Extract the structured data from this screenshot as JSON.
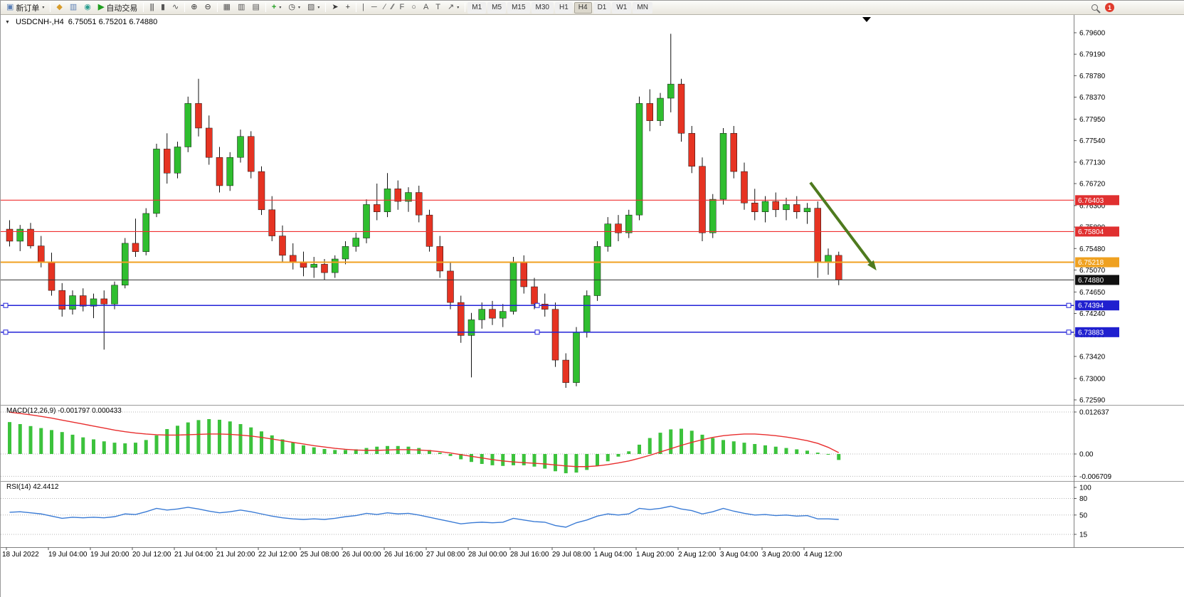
{
  "toolbar": {
    "new_order_label": "新订单",
    "autotrading_label": "自动交易",
    "timeframes": [
      "M1",
      "M5",
      "M15",
      "M30",
      "H1",
      "H4",
      "D1",
      "W1",
      "MN"
    ],
    "active_timeframe": "H4",
    "notification_count": "1"
  },
  "icons": {
    "oct": "▼",
    "caret": "▾",
    "new_order": "▣",
    "metaeditor": "◆",
    "charts": "▥",
    "community": "◉",
    "autotrading": "▶",
    "bars": "|||",
    "candles": "▮",
    "line_chart": "∿",
    "zoom_in": "⊕",
    "zoom_out": "⊖",
    "grid": "▦",
    "tile": "▥",
    "cascade": "▤",
    "indicators": "+",
    "periods": "◷",
    "template": "▧",
    "cursor": "➤",
    "crosshair": "+",
    "vline": "|",
    "hline": "─",
    "trendline": "∕",
    "channel": "∕∕",
    "fibonacci": "F",
    "shapes": "○",
    "text": "A",
    "label": "T",
    "arrows": "↗"
  },
  "chart": {
    "symbol_period": "USDCNH-,H4",
    "quotes": "6.75051 6.75201 6.74880"
  },
  "chart_data": {
    "type": "candlestick",
    "symbol": "USDCNH",
    "timeframe": "H4",
    "ylim": [
      6.7259,
      6.796
    ],
    "colors": {
      "up": "#2fbe2f",
      "down": "#e63322",
      "wick": "#111111",
      "histogram": "#3cc23c",
      "signal": "#e82e2e",
      "rsi": "#3a7bd5",
      "red_line": "#f03030",
      "orange_line": "#f0a020",
      "blue_line": "#2222d8",
      "bid_line": "#333333",
      "arrow": "#4e7a1e"
    },
    "y_ticks": [
      "6.79600",
      "6.79190",
      "6.78780",
      "6.78370",
      "6.77950",
      "6.77540",
      "6.77130",
      "6.76720",
      "6.76300",
      "6.75890",
      "6.75480",
      "6.75070",
      "6.74650",
      "6.74240",
      "6.73830",
      "6.73420",
      "6.73000",
      "6.72590"
    ],
    "hlines": [
      {
        "price": 6.76403,
        "label": "6.76403",
        "color": "#f03030",
        "badge": "#e03030",
        "width": 1.2,
        "handles": false
      },
      {
        "price": 6.75804,
        "label": "6.75804",
        "color": "#f03030",
        "badge": "#e03030",
        "width": 1.2,
        "handles": false
      },
      {
        "price": 6.75218,
        "label": "6.75218",
        "color": "#f0a020",
        "badge": "#efa120",
        "width": 2,
        "handles": false
      },
      {
        "price": 6.7488,
        "label": "6.74880",
        "color": "#333333",
        "badge": "#111111",
        "width": 1,
        "handles": false
      },
      {
        "price": 6.74394,
        "label": "6.74394",
        "color": "#2222d8",
        "badge": "#2020cf",
        "width": 1.5,
        "handles": true
      },
      {
        "price": 6.73883,
        "label": "6.73883",
        "color": "#2222d8",
        "badge": "#2020cf",
        "width": 1.5,
        "handles": true
      }
    ],
    "arrow": {
      "from_index": 76.3,
      "from_price": 6.7674,
      "to_index": 82.6,
      "to_price": 6.7506,
      "color": "#4e7a1e"
    },
    "x_labels": [
      "18 Jul 2022",
      "19 Jul 04:00",
      "19 Jul 20:00",
      "20 Jul 12:00",
      "21 Jul 04:00",
      "21 Jul 20:00",
      "22 Jul 12:00",
      "25 Jul 08:00",
      "26 Jul 00:00",
      "26 Jul 16:00",
      "27 Jul 08:00",
      "28 Jul 00:00",
      "28 Jul 16:00",
      "29 Jul 08:00",
      "1 Aug 04:00",
      "1 Aug 20:00",
      "2 Aug 12:00",
      "3 Aug 04:00",
      "3 Aug 20:00",
      "4 Aug 12:00"
    ],
    "candles": [
      [
        6.7585,
        6.7602,
        6.7552,
        6.7562
      ],
      [
        6.7562,
        6.7593,
        6.7543,
        6.7585
      ],
      [
        6.7585,
        6.7597,
        6.7548,
        6.7553
      ],
      [
        6.7553,
        6.7572,
        6.7512,
        6.7522
      ],
      [
        6.7522,
        6.754,
        6.7458,
        6.7468
      ],
      [
        6.7468,
        6.7482,
        6.7418,
        6.7432
      ],
      [
        6.7432,
        6.7468,
        6.7422,
        6.7458
      ],
      [
        6.7458,
        6.7472,
        6.7428,
        6.7438
      ],
      [
        6.7438,
        6.7462,
        6.7415,
        6.7452
      ],
      [
        6.7452,
        6.7468,
        6.7355,
        6.7442
      ],
      [
        6.7442,
        6.7485,
        6.7432,
        6.7478
      ],
      [
        6.7478,
        6.7568,
        6.7472,
        6.7558
      ],
      [
        6.7558,
        6.7605,
        6.7532,
        6.7542
      ],
      [
        6.7542,
        6.7625,
        6.7535,
        6.7615
      ],
      [
        6.7615,
        6.7748,
        6.7608,
        6.7738
      ],
      [
        6.7738,
        6.7768,
        6.7672,
        6.7692
      ],
      [
        6.7692,
        6.7752,
        6.7682,
        6.7742
      ],
      [
        6.7742,
        6.7838,
        6.7732,
        6.7825
      ],
      [
        6.7825,
        6.7872,
        6.7762,
        6.7778
      ],
      [
        6.7778,
        6.7802,
        6.7708,
        6.7722
      ],
      [
        6.7722,
        6.7742,
        6.7655,
        6.7668
      ],
      [
        6.7668,
        6.7732,
        6.7658,
        6.7722
      ],
      [
        6.7722,
        6.7775,
        6.7712,
        6.7762
      ],
      [
        6.7762,
        6.7772,
        6.7682,
        6.7695
      ],
      [
        6.7695,
        6.7705,
        6.7612,
        6.7622
      ],
      [
        6.7622,
        6.7648,
        6.7562,
        6.7572
      ],
      [
        6.7572,
        6.7592,
        6.7522,
        6.7535
      ],
      [
        6.7535,
        6.7558,
        6.7508,
        6.7522
      ],
      [
        6.7522,
        6.7542,
        6.7495,
        6.7512
      ],
      [
        6.7512,
        6.7532,
        6.7492,
        6.7518
      ],
      [
        6.7518,
        6.7528,
        6.7488,
        6.7502
      ],
      [
        6.7502,
        6.7535,
        6.7492,
        6.7528
      ],
      [
        6.7528,
        6.7562,
        6.7518,
        6.7552
      ],
      [
        6.7552,
        6.7578,
        6.7542,
        6.7568
      ],
      [
        6.7568,
        6.7642,
        6.7558,
        6.7632
      ],
      [
        6.7632,
        6.7672,
        6.7602,
        6.7618
      ],
      [
        6.7618,
        6.7692,
        6.7608,
        6.7662
      ],
      [
        6.7662,
        6.7678,
        6.7622,
        6.7638
      ],
      [
        6.7638,
        6.7665,
        6.7618,
        6.7655
      ],
      [
        6.7655,
        6.7668,
        6.7598,
        6.7612
      ],
      [
        6.7612,
        6.7622,
        6.7542,
        6.7552
      ],
      [
        6.7552,
        6.7572,
        6.7492,
        6.7505
      ],
      [
        6.7505,
        6.7522,
        6.7432,
        6.7445
      ],
      [
        6.7445,
        6.7458,
        6.7368,
        6.7382
      ],
      [
        6.7382,
        6.7425,
        6.7302,
        6.7412
      ],
      [
        6.7412,
        6.7445,
        6.7395,
        6.7432
      ],
      [
        6.7432,
        6.7448,
        6.7402,
        6.7415
      ],
      [
        6.7415,
        6.7442,
        6.7398,
        6.7428
      ],
      [
        6.7428,
        6.7532,
        6.7422,
        6.7522
      ],
      [
        6.7522,
        6.7535,
        6.7462,
        6.7475
      ],
      [
        6.7475,
        6.7492,
        6.7432,
        6.7442
      ],
      [
        6.7442,
        6.7462,
        6.7418,
        6.7432
      ],
      [
        6.7432,
        6.7445,
        6.7322,
        6.7335
      ],
      [
        6.7335,
        6.7348,
        6.7282,
        6.7292
      ],
      [
        6.7292,
        6.7398,
        6.7285,
        6.7388
      ],
      [
        6.7388,
        6.7468,
        6.7378,
        6.7458
      ],
      [
        6.7458,
        6.7562,
        6.7448,
        6.7552
      ],
      [
        6.7552,
        6.7608,
        6.7542,
        6.7595
      ],
      [
        6.7595,
        6.7612,
        6.7562,
        6.7578
      ],
      [
        6.7578,
        6.7622,
        6.7568,
        6.7612
      ],
      [
        6.7612,
        6.7838,
        6.7602,
        6.7825
      ],
      [
        6.7825,
        6.7852,
        6.7772,
        6.7792
      ],
      [
        6.7792,
        6.7845,
        6.7782,
        6.7835
      ],
      [
        6.7835,
        6.7958,
        6.7808,
        6.7862
      ],
      [
        6.7862,
        6.7872,
        6.7752,
        6.7768
      ],
      [
        6.7768,
        6.7782,
        6.7692,
        6.7705
      ],
      [
        6.7705,
        6.7722,
        6.7562,
        6.7578
      ],
      [
        6.7578,
        6.7652,
        6.7568,
        6.7642
      ],
      [
        6.7642,
        6.7778,
        6.7632,
        6.7768
      ],
      [
        6.7768,
        6.7782,
        6.7682,
        6.7695
      ],
      [
        6.7695,
        6.7712,
        6.7622,
        6.7635
      ],
      [
        6.7635,
        6.7662,
        6.7602,
        6.7618
      ],
      [
        6.7618,
        6.7648,
        6.7598,
        6.7638
      ],
      [
        6.7638,
        6.7655,
        6.7608,
        6.7622
      ],
      [
        6.7622,
        6.7645,
        6.7602,
        6.7632
      ],
      [
        6.7632,
        6.7648,
        6.7605,
        6.7618
      ],
      [
        6.7618,
        6.7635,
        6.7595,
        6.7625
      ],
      [
        6.7625,
        6.7638,
        6.7492,
        6.7522
      ],
      [
        6.7522,
        6.7548,
        6.7498,
        6.7535
      ],
      [
        6.7535,
        6.7542,
        6.7478,
        6.7488
      ]
    ],
    "macd": {
      "label": "MACD(12,26,9) -0.001797 0.000433",
      "main_value": -0.001797,
      "signal_value": 0.000433,
      "scale": [
        {
          "v": 0.012637,
          "label": "0.012637"
        },
        {
          "v": 0,
          "label": "0.00"
        },
        {
          "v": -0.006709,
          "label": "-0.006709"
        }
      ],
      "histogram": [
        0.0096,
        0.009,
        0.0084,
        0.0078,
        0.0072,
        0.0066,
        0.0058,
        0.005,
        0.0044,
        0.0038,
        0.0034,
        0.0032,
        0.0034,
        0.0042,
        0.0056,
        0.0075,
        0.0085,
        0.0095,
        0.0102,
        0.0105,
        0.0103,
        0.0098,
        0.009,
        0.008,
        0.0068,
        0.0056,
        0.0044,
        0.0034,
        0.0026,
        0.002,
        0.0015,
        0.0012,
        0.0012,
        0.0014,
        0.0018,
        0.0022,
        0.0024,
        0.0024,
        0.0022,
        0.0018,
        0.0012,
        0.0004,
        -0.0006,
        -0.0016,
        -0.0024,
        -0.003,
        -0.0034,
        -0.0036,
        -0.0034,
        -0.0034,
        -0.0038,
        -0.0044,
        -0.0052,
        -0.0058,
        -0.0056,
        -0.0048,
        -0.0036,
        -0.0022,
        -0.0008,
        0.0008,
        0.0028,
        0.0048,
        0.0064,
        0.0074,
        0.0076,
        0.007,
        0.0058,
        0.0048,
        0.0042,
        0.0038,
        0.0034,
        0.003,
        0.0026,
        0.0022,
        0.0018,
        0.0014,
        0.001,
        0.0004,
        -0.0002,
        -0.0018
      ],
      "signal": [
        0.0126,
        0.0122,
        0.0118,
        0.0113,
        0.0108,
        0.0102,
        0.0096,
        0.009,
        0.0084,
        0.0078,
        0.0072,
        0.0067,
        0.0063,
        0.006,
        0.0058,
        0.0057,
        0.0057,
        0.0058,
        0.0059,
        0.006,
        0.006,
        0.0059,
        0.0057,
        0.0054,
        0.005,
        0.0045,
        0.004,
        0.0035,
        0.003,
        0.0025,
        0.0021,
        0.0017,
        0.0014,
        0.0012,
        0.0011,
        0.0011,
        0.0012,
        0.0013,
        0.0013,
        0.0012,
        0.001,
        0.0007,
        0.0003,
        -0.0002,
        -0.0007,
        -0.0012,
        -0.0017,
        -0.0021,
        -0.0024,
        -0.0026,
        -0.0028,
        -0.003,
        -0.0033,
        -0.0036,
        -0.0038,
        -0.0038,
        -0.0036,
        -0.0032,
        -0.0027,
        -0.0021,
        -0.0013,
        -0.0004,
        0.0006,
        0.0016,
        0.0026,
        0.0035,
        0.0043,
        0.005,
        0.0055,
        0.0058,
        0.006,
        0.006,
        0.0058,
        0.0055,
        0.0051,
        0.0046,
        0.004,
        0.0032,
        0.002,
        0.0004
      ]
    },
    "rsi": {
      "label": "RSI(14) 42.4412",
      "value": 42.4412,
      "levels": [
        "100",
        "80",
        "50",
        "15"
      ],
      "values": [
        55,
        56,
        54,
        52,
        48,
        44,
        46,
        45,
        46,
        45,
        47,
        52,
        51,
        56,
        62,
        59,
        61,
        64,
        61,
        57,
        54,
        56,
        59,
        56,
        52,
        48,
        45,
        43,
        42,
        43,
        42,
        44,
        47,
        49,
        53,
        51,
        54,
        52,
        53,
        50,
        46,
        42,
        38,
        34,
        36,
        37,
        36,
        37,
        44,
        41,
        38,
        37,
        31,
        28,
        36,
        41,
        48,
        52,
        50,
        52,
        62,
        60,
        62,
        66,
        61,
        58,
        52,
        56,
        62,
        57,
        53,
        50,
        51,
        49,
        50,
        48,
        49,
        43,
        43,
        42
      ]
    }
  }
}
